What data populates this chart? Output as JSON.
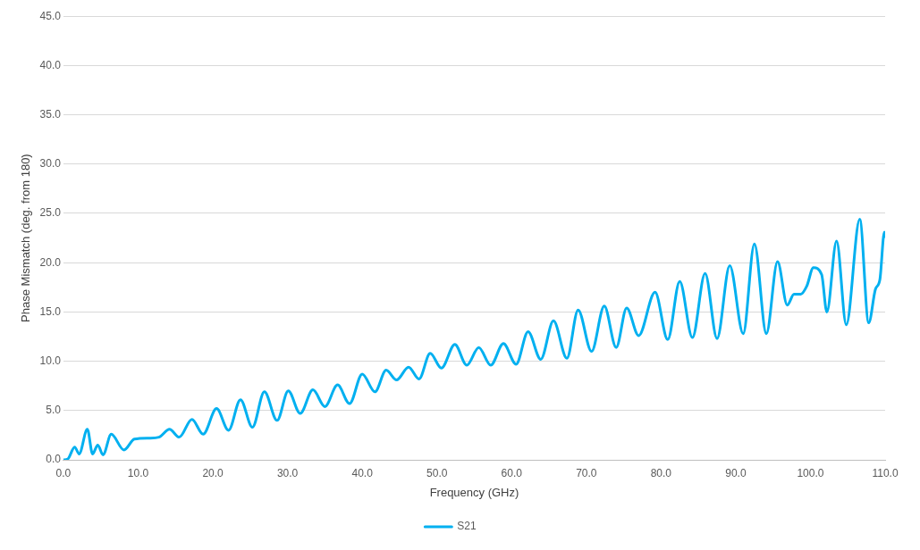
{
  "chart_data": {
    "type": "line",
    "xlabel": "Frequency (GHz)",
    "ylabel": "Phase Mismatch (deg. from 180)",
    "xlim": [
      0,
      110
    ],
    "ylim": [
      0,
      45
    ],
    "xticks": [
      {
        "value": 0,
        "label": "0.0"
      },
      {
        "value": 10,
        "label": "10.0"
      },
      {
        "value": 20,
        "label": "20.0"
      },
      {
        "value": 30,
        "label": "30.0"
      },
      {
        "value": 40,
        "label": "40.0"
      },
      {
        "value": 50,
        "label": "50.0"
      },
      {
        "value": 60,
        "label": "60.0"
      },
      {
        "value": 70,
        "label": "70.0"
      },
      {
        "value": 80,
        "label": "80.0"
      },
      {
        "value": 90,
        "label": "90.0"
      },
      {
        "value": 100,
        "label": "100.0"
      },
      {
        "value": 110,
        "label": "110.0"
      }
    ],
    "yticks": [
      {
        "value": 0,
        "label": "0.0"
      },
      {
        "value": 5,
        "label": "5.0"
      },
      {
        "value": 10,
        "label": "10.0"
      },
      {
        "value": 15,
        "label": "15.0"
      },
      {
        "value": 20,
        "label": "20.0"
      },
      {
        "value": 25,
        "label": "25.0"
      },
      {
        "value": 30,
        "label": "30.0"
      },
      {
        "value": 35,
        "label": "35.0"
      },
      {
        "value": 40,
        "label": "40.0"
      },
      {
        "value": 45,
        "label": "45.0"
      }
    ],
    "grid": "y",
    "legend": "bottom",
    "marker": "none",
    "line_style": "solid",
    "series": [
      {
        "name": "S21",
        "color": "#00b0f0",
        "x": [
          0,
          0.6,
          1.5,
          2.1,
          3.2,
          3.9,
          4.6,
          5.3,
          6.4,
          8.1,
          9.5,
          11.5,
          12.8,
          14.2,
          15.5,
          17.2,
          18.7,
          20.5,
          22.1,
          23.7,
          25.3,
          26.9,
          28.6,
          30.1,
          31.7,
          33.4,
          35.0,
          36.7,
          38.3,
          40.0,
          41.7,
          43.2,
          44.6,
          46.2,
          47.6,
          49.1,
          50.6,
          52.4,
          54.0,
          55.6,
          57.2,
          58.9,
          60.6,
          62.2,
          63.9,
          65.6,
          67.4,
          68.9,
          70.7,
          72.4,
          74.0,
          75.4,
          77.0,
          79.2,
          80.9,
          82.5,
          84.2,
          85.9,
          87.5,
          89.2,
          91.0,
          92.5,
          94.1,
          95.6,
          96.9,
          97.8,
          98.7,
          99.5,
          100.4,
          101.5,
          102.2,
          103.5,
          104.8,
          106.6,
          107.8,
          108.7,
          109.3,
          109.9,
          110
        ],
        "values": [
          0,
          0.1,
          1.3,
          0.6,
          3.1,
          0.6,
          1.5,
          0.5,
          2.6,
          1.0,
          2.1,
          2.2,
          2.3,
          3.1,
          2.3,
          4.1,
          2.6,
          5.2,
          3.0,
          6.1,
          3.3,
          6.9,
          4.0,
          7.0,
          4.7,
          7.1,
          5.4,
          7.6,
          5.7,
          8.7,
          6.9,
          9.1,
          8.1,
          9.4,
          8.2,
          10.8,
          9.3,
          11.7,
          9.6,
          11.4,
          9.6,
          11.8,
          9.7,
          13.0,
          10.2,
          14.1,
          10.3,
          15.2,
          11.0,
          15.6,
          11.4,
          15.4,
          12.6,
          17.0,
          12.2,
          18.1,
          12.4,
          18.9,
          12.3,
          19.7,
          12.8,
          21.9,
          12.8,
          20.1,
          15.7,
          16.8,
          16.8,
          17.6,
          19.5,
          18.8,
          15.0,
          22.2,
          13.7,
          24.4,
          13.9,
          17.3,
          18.3,
          23.1,
          22.5
        ]
      }
    ]
  }
}
